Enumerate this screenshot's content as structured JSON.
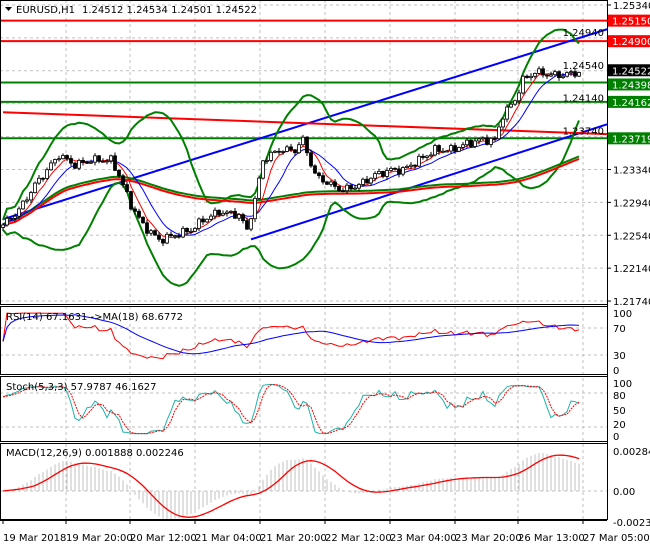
{
  "header": {
    "symbol": "EURUSD,H1",
    "ohlc": "1.24512 1.24534 1.24501 1.24522"
  },
  "colors": {
    "red_level": "#ff0000",
    "green_level": "#008000",
    "trend": "#0000ff",
    "current": "#000000"
  },
  "chart_data": {
    "type": "candlestick",
    "bars": 145,
    "close_keypoints": [
      [
        0,
        1.22665
      ],
      [
        4,
        1.22847
      ],
      [
        8,
        1.23151
      ],
      [
        12,
        1.23394
      ],
      [
        14,
        1.23516
      ],
      [
        18,
        1.23394
      ],
      [
        22,
        1.23455
      ],
      [
        27,
        1.23455
      ],
      [
        29,
        1.23273
      ],
      [
        32,
        1.22908
      ],
      [
        35,
        1.22665
      ],
      [
        39,
        1.22482
      ],
      [
        43,
        1.22543
      ],
      [
        47,
        1.22604
      ],
      [
        50,
        1.22726
      ],
      [
        54,
        1.22823
      ],
      [
        59,
        1.22786
      ],
      [
        61,
        1.22604
      ],
      [
        63,
        1.22969
      ],
      [
        65,
        1.23455
      ],
      [
        69,
        1.23577
      ],
      [
        73,
        1.23577
      ],
      [
        75,
        1.23698
      ],
      [
        78,
        1.23273
      ],
      [
        82,
        1.23151
      ],
      [
        85,
        1.2309
      ],
      [
        89,
        1.23151
      ],
      [
        93,
        1.23273
      ],
      [
        97,
        1.23334
      ],
      [
        100,
        1.23334
      ],
      [
        104,
        1.23455
      ],
      [
        108,
        1.23577
      ],
      [
        112,
        1.23577
      ],
      [
        115,
        1.23638
      ],
      [
        119,
        1.23698
      ],
      [
        123,
        1.23698
      ],
      [
        125,
        1.24002
      ],
      [
        128,
        1.24185
      ],
      [
        130,
        1.24428
      ],
      [
        133,
        1.24525
      ],
      [
        137,
        1.24489
      ],
      [
        140,
        1.24489
      ],
      [
        144,
        1.24522
      ]
    ],
    "price_axis": {
      "min": 1.2174,
      "max": 1.2534,
      "ticks": [
        "1.25340",
        "1.24940",
        "1.24540",
        "1.24140",
        "1.23740",
        "1.23340",
        "1.22940",
        "1.22540",
        "1.22140",
        "1.21740"
      ]
    },
    "levels": [
      {
        "label": "1.25150",
        "price": 1.2515,
        "color": "red"
      },
      {
        "label": "1.24900",
        "price": 1.249,
        "color": "red"
      },
      {
        "label": "1.24398",
        "price": 1.24398,
        "color": "green"
      },
      {
        "label": "1.24162",
        "price": 1.24162,
        "color": "green"
      },
      {
        "label": "1.23719",
        "price": 1.23719,
        "color": "green"
      }
    ],
    "current_price": "1.24522",
    "trendlines": [
      {
        "color": "blue",
        "from": [
          0,
          1.22735
        ],
        "to": [
          151,
          1.25045
        ]
      },
      {
        "color": "blue",
        "from": [
          62,
          1.2249
        ],
        "to": [
          151,
          1.23889
        ]
      },
      {
        "color": "red",
        "from": [
          0,
          1.24036
        ],
        "to": [
          151,
          1.2377
        ]
      }
    ],
    "time_labels": [
      "19 Mar 2018",
      "19 Mar 20:00",
      "20 Mar 12:00",
      "21 Mar 04:00",
      "21 Mar 20:00",
      "22 Mar 12:00",
      "23 Mar 04:00",
      "23 Mar 20:00",
      "26 Mar 13:00",
      "27 Mar 05:00"
    ],
    "rsi": {
      "label": "RSI(14) 67.1631  ->MA(18) 68.6772",
      "ticks": [
        "100",
        "70",
        "30",
        "0"
      ]
    },
    "stoch": {
      "label": "Stoch(5,3,3) 57.9787 46.1627",
      "ticks": [
        "100",
        "80",
        "50",
        "20",
        "0"
      ]
    },
    "macd": {
      "label": "MACD(12,26,9) 0.001888 0.002246",
      "ticks": [
        "0.002841",
        "0.00",
        "-0.002338"
      ]
    }
  }
}
